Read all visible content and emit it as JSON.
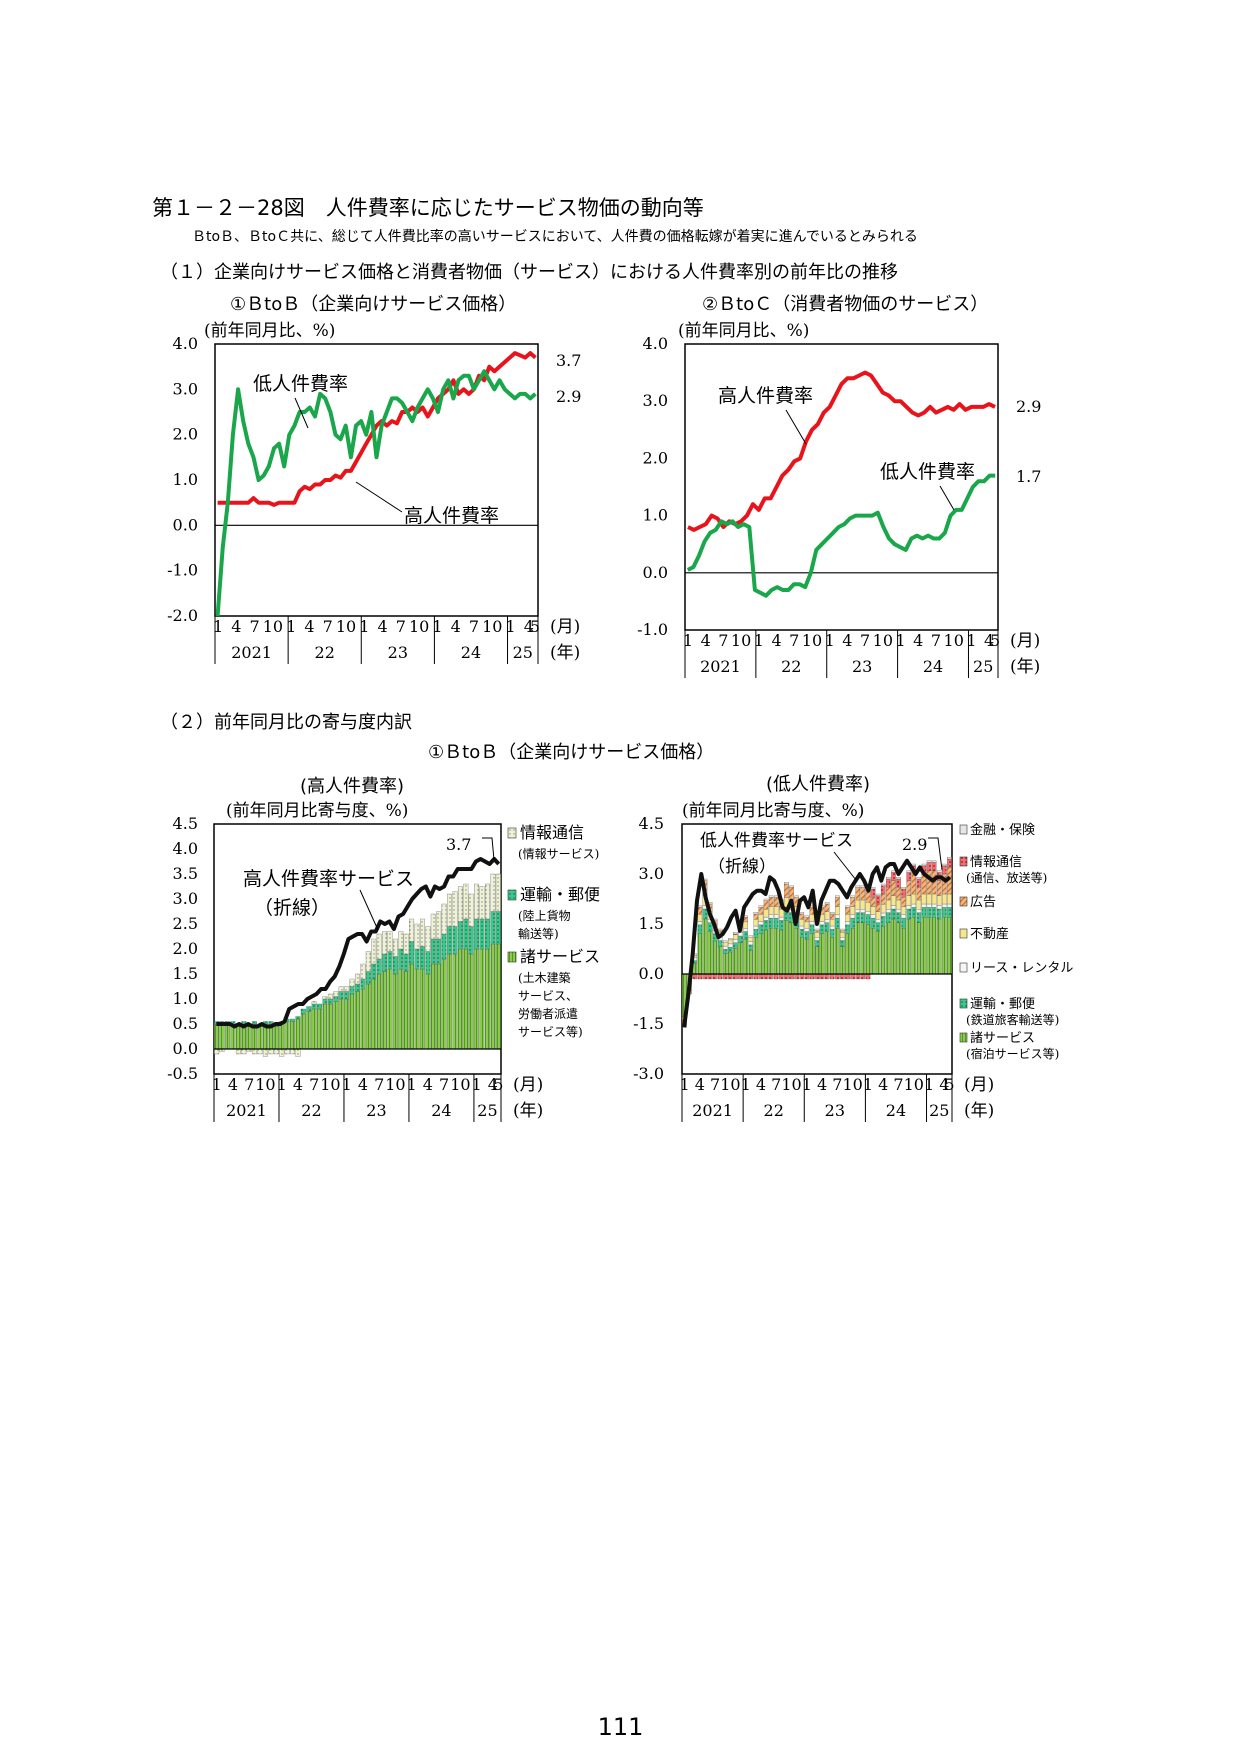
{
  "figure_title": "第１－２－28図　人件費率に応じたサービス物価の動向等",
  "figure_subtitle": "ＢtoＢ、ＢtoＣ共に、総じて人件費比率の高いサービスにおいて、人件費の価格転嫁が着実に進んでいるとみられる",
  "section1": "（１）企業向けサービス価格と消費者物価（サービス）における人件費率別の前年比の推移",
  "section2": "（２）前年同月比の寄与度内訳",
  "section2_panel": "①ＢtoＢ（企業向けサービス価格）",
  "page_number": "111",
  "axis_common": {
    "month_ticks": [
      "1",
      "4",
      "7",
      "10",
      "1",
      "4",
      "7",
      "10",
      "1",
      "4",
      "7",
      "10",
      "1",
      "4",
      "7",
      "10",
      "1",
      "4",
      "5"
    ],
    "years": [
      "2021",
      "22",
      "23",
      "24",
      "25"
    ],
    "month_unit": "(月)",
    "year_unit": "(年)"
  },
  "chart_data": [
    {
      "id": "btob",
      "type": "line",
      "title": "①ＢtoＢ（企業向けサービス価格）",
      "ylabel": "(前年同月比、%)",
      "ylim": [
        -2.0,
        4.0
      ],
      "yticks": [
        "4.0",
        "3.0",
        "2.0",
        "1.0",
        "0.0",
        "-1.0",
        "-2.0"
      ],
      "x": "monthly 2021-01 … 2025-05",
      "grid": false,
      "colors": {
        "high": "#e8141c",
        "low": "#1aa64a"
      },
      "series": [
        {
          "name": "高人件費率",
          "color": "#e8141c",
          "values": [
            0.5,
            0.5,
            0.5,
            0.5,
            0.5,
            0.5,
            0.5,
            0.6,
            0.5,
            0.5,
            0.5,
            0.45,
            0.5,
            0.5,
            0.5,
            0.5,
            0.75,
            0.85,
            0.8,
            0.9,
            0.9,
            1.0,
            1.0,
            1.1,
            1.05,
            1.2,
            1.2,
            1.4,
            1.6,
            1.8,
            2.0,
            2.2,
            2.3,
            2.2,
            2.3,
            2.25,
            2.5,
            2.5,
            2.6,
            2.5,
            2.6,
            2.4,
            2.6,
            2.8,
            2.9,
            3.0,
            3.2,
            2.9,
            3.0,
            2.9,
            3.0,
            3.3,
            3.2,
            3.5,
            3.4,
            3.5,
            3.6,
            3.7,
            3.8,
            3.75,
            3.7,
            3.8,
            3.7
          ]
        },
        {
          "name": "低人件費率",
          "color": "#1aa64a",
          "values": [
            -2.0,
            -0.5,
            0.5,
            2.0,
            3.0,
            2.3,
            1.8,
            1.5,
            1.0,
            1.1,
            1.3,
            1.7,
            1.8,
            1.3,
            2.0,
            2.2,
            2.5,
            2.5,
            2.6,
            2.4,
            2.9,
            2.8,
            2.5,
            2.0,
            1.9,
            2.2,
            1.5,
            2.2,
            2.3,
            2.0,
            2.5,
            1.5,
            2.2,
            2.5,
            2.8,
            2.8,
            2.7,
            2.5,
            2.3,
            2.6,
            2.8,
            3.0,
            2.8,
            2.5,
            3.0,
            3.2,
            2.8,
            3.2,
            3.3,
            3.3,
            3.0,
            3.2,
            3.4,
            3.2,
            3.0,
            3.2,
            3.0,
            2.9,
            2.8,
            2.9,
            2.9,
            2.8,
            2.9
          ]
        }
      ],
      "end_labels": [
        "3.7",
        "2.9"
      ],
      "annotations": [
        "低人件費率",
        "高人件費率"
      ]
    },
    {
      "id": "btoc",
      "type": "line",
      "title": "②ＢtoＣ（消費者物価のサービス）",
      "ylabel": "(前年同月比、%)",
      "ylim": [
        -1.0,
        4.0
      ],
      "yticks": [
        "4.0",
        "3.0",
        "2.0",
        "1.0",
        "0.0",
        "-1.0"
      ],
      "x": "monthly 2021-01 … 2025-05",
      "grid": false,
      "series": [
        {
          "name": "高人件費率",
          "color": "#e8141c",
          "values": [
            0.8,
            0.75,
            0.8,
            0.85,
            1.0,
            0.95,
            0.8,
            0.9,
            0.85,
            0.9,
            1.0,
            1.2,
            1.1,
            1.3,
            1.3,
            1.5,
            1.7,
            1.8,
            1.95,
            2.0,
            2.3,
            2.5,
            2.6,
            2.8,
            2.9,
            3.1,
            3.3,
            3.4,
            3.4,
            3.45,
            3.5,
            3.45,
            3.3,
            3.15,
            3.1,
            3.0,
            3.0,
            2.9,
            2.8,
            2.75,
            2.8,
            2.9,
            2.8,
            2.85,
            2.9,
            2.85,
            2.95,
            2.85,
            2.9,
            2.9,
            2.9,
            2.95,
            2.9
          ]
        },
        {
          "name": "低人件費率",
          "color": "#1aa64a",
          "values": [
            0.05,
            0.1,
            0.3,
            0.55,
            0.7,
            0.75,
            0.9,
            0.85,
            0.9,
            0.8,
            0.85,
            0.8,
            -0.3,
            -0.35,
            -0.4,
            -0.3,
            -0.25,
            -0.3,
            -0.3,
            -0.2,
            -0.2,
            -0.25,
            0.0,
            0.4,
            0.5,
            0.6,
            0.7,
            0.8,
            0.85,
            0.95,
            1.0,
            1.0,
            1.0,
            1.0,
            1.05,
            0.8,
            0.6,
            0.5,
            0.45,
            0.4,
            0.6,
            0.65,
            0.6,
            0.65,
            0.6,
            0.6,
            0.7,
            1.0,
            1.1,
            1.1,
            1.3,
            1.5,
            1.6,
            1.6,
            1.7,
            1.7
          ]
        }
      ],
      "end_labels": [
        "2.9",
        "1.7"
      ],
      "annotations": [
        "高人件費率",
        "低人件費率"
      ]
    },
    {
      "id": "contrib_high",
      "type": "bar",
      "stacked": true,
      "title": "(高人件費率)",
      "ylabel": "(前年同月比寄与度、%)",
      "ylim": [
        -0.5,
        4.5
      ],
      "yticks": [
        "4.5",
        "4.0",
        "3.5",
        "3.0",
        "2.5",
        "2.0",
        "1.5",
        "1.0",
        "0.5",
        "0.0",
        "-0.5"
      ],
      "end_label": "3.7",
      "line_annotation": "高人件費率サービス\n（折線）",
      "legend": [
        {
          "name": "情報通信",
          "note": "(情報サービス)",
          "color": "#eef2d8",
          "pattern": "dots"
        },
        {
          "name": "運輸・郵便",
          "note": "(陸上貨物\n輸送等)",
          "color": "#3cc88c",
          "pattern": "dots"
        },
        {
          "name": "諸サービス",
          "note": "(土木建築\nサービス、\n労働者派遣\nサービス等)",
          "color": "#8ccc4c",
          "pattern": "stripes"
        }
      ],
      "series": [
        {
          "name": "諸サービス",
          "values": [
            0.5,
            0.5,
            0.5,
            0.5,
            0.45,
            0.5,
            0.45,
            0.5,
            0.45,
            0.5,
            0.5,
            0.45,
            0.5,
            0.55,
            0.55,
            0.6,
            0.7,
            0.75,
            0.8,
            0.8,
            0.9,
            0.9,
            0.95,
            1.0,
            1.0,
            1.1,
            1.15,
            1.2,
            1.3,
            1.4,
            1.5,
            1.55,
            1.6,
            1.5,
            1.6,
            1.55,
            1.7,
            1.6,
            1.6,
            1.5,
            1.7,
            1.7,
            1.8,
            1.9,
            1.9,
            2.0,
            2.0,
            1.9,
            2.0,
            2.0,
            2.0,
            2.1,
            2.1,
            2.2,
            2.2,
            2.2,
            2.2,
            2.25,
            2.3,
            2.2,
            2.2,
            2.3,
            2.2
          ]
        },
        {
          "name": "運輸・郵便",
          "values": [
            0.05,
            0.05,
            0.05,
            0.05,
            0.05,
            0.05,
            0.05,
            0.05,
            0.05,
            0.05,
            0.05,
            0.05,
            0.05,
            0.05,
            0.05,
            0.05,
            0.1,
            0.1,
            0.1,
            0.1,
            0.1,
            0.1,
            0.1,
            0.15,
            0.15,
            0.15,
            0.15,
            0.2,
            0.25,
            0.3,
            0.3,
            0.35,
            0.35,
            0.35,
            0.4,
            0.35,
            0.45,
            0.4,
            0.45,
            0.45,
            0.5,
            0.5,
            0.5,
            0.55,
            0.55,
            0.55,
            0.6,
            0.55,
            0.6,
            0.6,
            0.6,
            0.65,
            0.65,
            0.7,
            0.7,
            0.7,
            0.7,
            0.75,
            0.75,
            0.75,
            0.7,
            0.75,
            0.7
          ]
        },
        {
          "name": "情報通信",
          "values": [
            -0.1,
            -0.05,
            0.0,
            0.0,
            -0.1,
            -0.1,
            -0.05,
            -0.1,
            -0.1,
            -0.15,
            -0.1,
            -0.1,
            -0.15,
            -0.1,
            -0.1,
            -0.15,
            0.0,
            0.0,
            0.05,
            0.0,
            0.05,
            0.1,
            0.1,
            0.1,
            0.1,
            0.15,
            0.2,
            0.3,
            0.4,
            0.5,
            0.5,
            0.45,
            0.4,
            0.35,
            0.35,
            0.4,
            0.45,
            0.5,
            0.55,
            0.5,
            0.5,
            0.55,
            0.6,
            0.65,
            0.7,
            0.7,
            0.7,
            0.65,
            0.7,
            0.65,
            0.7,
            0.75,
            0.75,
            0.75,
            0.75,
            0.75,
            0.75,
            0.8,
            0.8,
            0.8,
            0.8,
            0.75,
            0.75
          ]
        }
      ],
      "total_line": [
        0.5,
        0.5,
        0.5,
        0.5,
        0.45,
        0.5,
        0.45,
        0.5,
        0.45,
        0.45,
        0.5,
        0.45,
        0.45,
        0.5,
        0.5,
        0.55,
        0.8,
        0.85,
        0.9,
        0.9,
        1.0,
        1.05,
        1.1,
        1.2,
        1.2,
        1.35,
        1.45,
        1.65,
        1.9,
        2.2,
        2.25,
        2.3,
        2.3,
        2.15,
        2.35,
        2.35,
        2.55,
        2.5,
        2.55,
        2.4,
        2.65,
        2.7,
        2.85,
        3.0,
        3.1,
        3.2,
        3.25,
        3.05,
        3.25,
        3.2,
        3.25,
        3.45,
        3.45,
        3.6,
        3.6,
        3.6,
        3.6,
        3.75,
        3.8,
        3.75,
        3.7,
        3.8,
        3.7
      ]
    },
    {
      "id": "contrib_low",
      "type": "bar",
      "stacked": true,
      "title": "(低人件費率)",
      "ylabel": "(前年同月比寄与度、%)",
      "ylim": [
        -3.0,
        4.5
      ],
      "yticks": [
        "4.5",
        "3.0",
        "1.5",
        "0.0",
        "-1.5",
        "-3.0"
      ],
      "end_label": "2.9",
      "line_annotation": "低人件費率サービス\n（折線）",
      "legend": [
        {
          "name": "金融・保険",
          "note": "",
          "color": "#e6e6e6",
          "pattern": "solid"
        },
        {
          "name": "情報通信",
          "note": "(通信、放送等)",
          "color": "#e8141c",
          "pattern": "dots"
        },
        {
          "name": "広告",
          "note": "",
          "color": "#f4b680",
          "pattern": "stripes"
        },
        {
          "name": "不動産",
          "note": "",
          "color": "#f6e68c",
          "pattern": "solid"
        },
        {
          "name": "リース・レンタル",
          "note": "",
          "color": "#f5f5f5",
          "pattern": "solid"
        },
        {
          "name": "運輸・郵便",
          "note": "(鉄道旅客輸送等)",
          "color": "#3cc88c",
          "pattern": "dots"
        },
        {
          "name": "諸サービス",
          "note": "(宿泊サービス等)",
          "color": "#8ccc4c",
          "pattern": "stripes"
        }
      ],
      "total_line": [
        -1.6,
        -0.6,
        0.6,
        2.2,
        3.0,
        2.3,
        1.8,
        1.5,
        1.1,
        1.2,
        1.4,
        1.7,
        1.9,
        1.3,
        2.0,
        2.2,
        2.4,
        2.5,
        2.5,
        2.4,
        2.9,
        2.8,
        2.5,
        2.0,
        1.9,
        2.2,
        1.5,
        2.2,
        2.3,
        2.0,
        2.5,
        1.5,
        2.2,
        2.5,
        2.8,
        2.8,
        2.7,
        2.5,
        2.3,
        2.6,
        2.8,
        3.0,
        2.8,
        2.5,
        3.0,
        3.2,
        2.8,
        3.2,
        3.3,
        3.3,
        3.0,
        3.2,
        3.4,
        3.2,
        3.0,
        3.2,
        3.0,
        2.9,
        2.8,
        2.9,
        2.9,
        2.8,
        2.9
      ]
    }
  ]
}
